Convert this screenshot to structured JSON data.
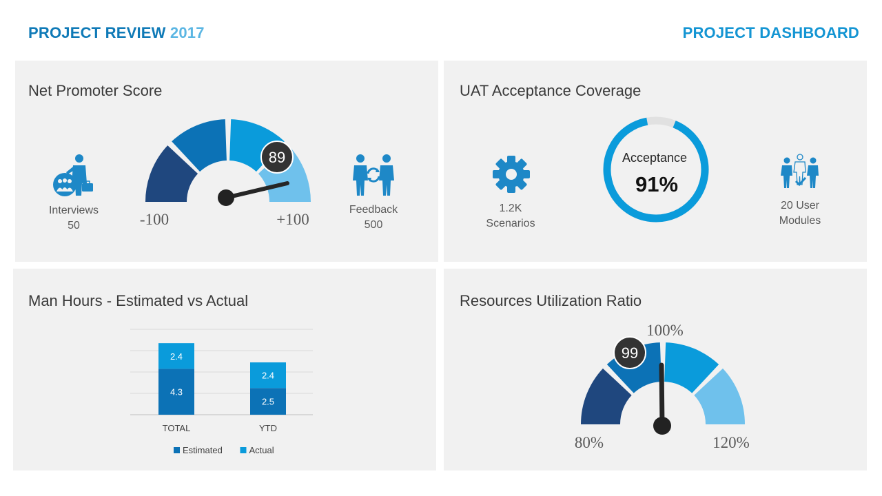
{
  "header": {
    "title_main": "PROJECT REVIEW",
    "title_year": "2017",
    "right_title": "PROJECT DASHBOARD"
  },
  "colors": {
    "dark_navy": "#1f477e",
    "mid_blue": "#0c72b6",
    "bright_blue": "#0a9bdb",
    "light_blue": "#6fc1ec",
    "knob": "#333333"
  },
  "nps": {
    "title": "Net Promoter Score",
    "value": "89",
    "min_label": "-100",
    "max_label": "+100",
    "left_stat": {
      "label": "Interviews",
      "value": "50",
      "icon": "team-presenter-icon"
    },
    "right_stat": {
      "label": "Feedback",
      "value": "500",
      "icon": "people-exchange-icon"
    }
  },
  "uat": {
    "title": "UAT Acceptance Coverage",
    "ring_label": "Acceptance",
    "ring_value": "91%",
    "ring_fraction": 0.91,
    "left_stat": {
      "value": "1.2K",
      "label": "Scenarios",
      "icon": "gear-icon"
    },
    "right_stat": {
      "value": "20 User",
      "label": "Modules",
      "icon": "user-modules-icon"
    }
  },
  "manhours": {
    "title": "Man Hours - Estimated vs Actual"
  },
  "chart_data": {
    "type": "bar",
    "stacked": true,
    "categories": [
      "TOTAL",
      "YTD"
    ],
    "series": [
      {
        "name": "Estimated",
        "values": [
          4.3,
          2.5
        ],
        "color": "#0c72b6"
      },
      {
        "name": "Actual",
        "values": [
          2.4,
          2.4
        ],
        "color": "#0a9bdb"
      }
    ],
    "ylim": [
      0,
      8
    ],
    "grid": true,
    "legend": "bottom"
  },
  "resources": {
    "title": "Resources Utilization Ratio",
    "value": "99",
    "min_label": "80%",
    "mid_label": "100%",
    "max_label": "120%"
  }
}
